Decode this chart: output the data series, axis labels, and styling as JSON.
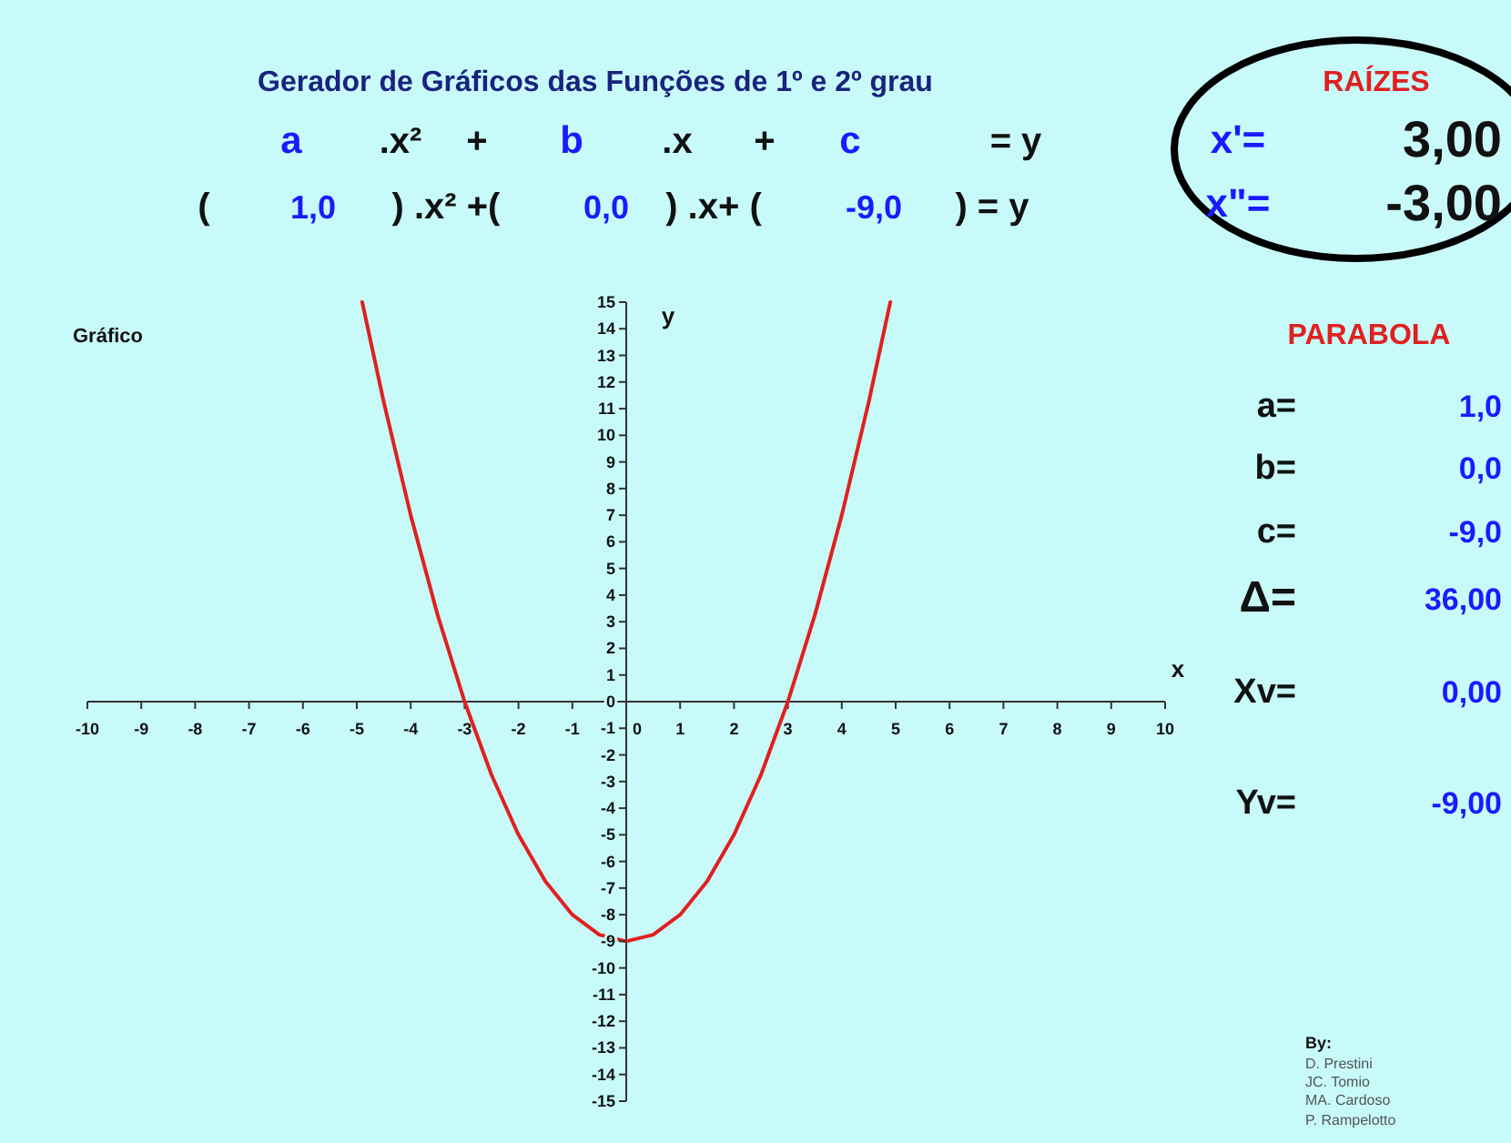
{
  "chart_data": {
    "type": "line",
    "title": "Gerador de Gráficos das Funções de 1º e 2º grau",
    "subtitle": "Gráfico",
    "xlabel": "x",
    "ylabel": "y",
    "x": [
      -4.9,
      -4.5,
      -4,
      -3.5,
      -3,
      -2.5,
      -2,
      -1.5,
      -1,
      -0.5,
      0,
      0.5,
      1,
      1.5,
      2,
      2.5,
      3,
      3.5,
      4,
      4.5,
      4.9
    ],
    "series": [
      {
        "color": "#e02020",
        "values": [
          15,
          11.25,
          7,
          3.25,
          0,
          -2.75,
          -5,
          -6.75,
          -8,
          -8.75,
          -9,
          -8.75,
          -8,
          -6.75,
          -5,
          -2.75,
          0,
          3.25,
          7,
          11.25,
          15
        ]
      }
    ],
    "xlim": [
      -10,
      10
    ],
    "ylim": [
      -15,
      15
    ],
    "xticks": [
      -10,
      -9,
      -8,
      -7,
      -6,
      -5,
      -4,
      -3,
      -2,
      -1,
      0,
      1,
      2,
      3,
      4,
      5,
      6,
      7,
      8,
      9,
      10
    ],
    "yticks": [
      -15,
      -14,
      -13,
      -12,
      -11,
      -10,
      -9,
      -8,
      -7,
      -6,
      -5,
      -4,
      -3,
      -2,
      -1,
      0,
      1,
      2,
      3,
      4,
      5,
      6,
      7,
      8,
      9,
      10,
      11,
      12,
      13,
      14,
      15
    ],
    "annotations": [
      "a",
      ".x²",
      "+",
      "b",
      ".x",
      "+",
      "c",
      "= y",
      "(",
      "1,0",
      ") .x²  +(",
      "0,0",
      ") .x+ (",
      "-9,0",
      ")  =  y",
      "RAÍZES",
      "x'=",
      "3,00",
      "x\"=",
      "-3,00",
      "PARABOLA",
      "a=",
      "1,0",
      "b=",
      "0,0",
      "c=",
      "-9,0",
      "Δ=",
      "36,00",
      "Xv=",
      "0,00",
      "Yv=",
      "-9,00",
      "By:",
      "D. Prestini",
      "JC. Tomio",
      "MA. Cardoso",
      "P. Rampelotto"
    ]
  }
}
